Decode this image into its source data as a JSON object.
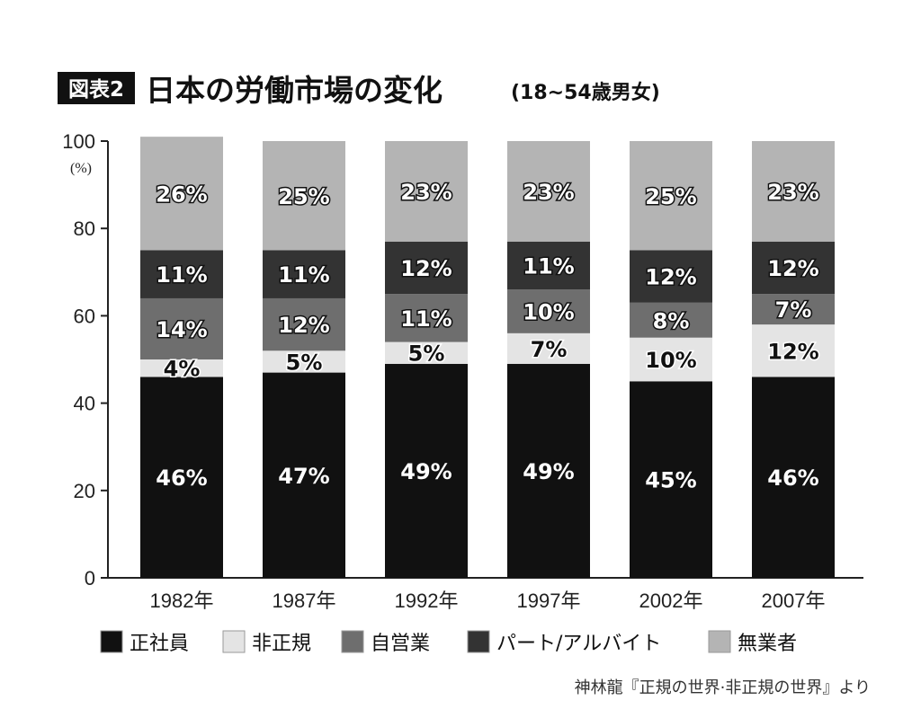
{
  "title": {
    "badge": "図表2",
    "main": "日本の労働市場の変化",
    "sub": "(18~54歳男女)"
  },
  "source": "神林龍『正規の世界·非正規の世界』より",
  "chart_data": {
    "type": "bar",
    "stacked": true,
    "ylabel": "(%)",
    "ylim": [
      0,
      100
    ],
    "yticks": [
      0,
      20,
      40,
      60,
      80,
      100
    ],
    "categories": [
      "1982年",
      "1987年",
      "1992年",
      "1997年",
      "2002年",
      "2007年"
    ],
    "legend_position": "bottom",
    "series": [
      {
        "name": "正社員",
        "color": "#111111",
        "label_color": "#ffffff",
        "values": [
          46,
          47,
          49,
          49,
          45,
          46
        ],
        "labels": [
          "46%",
          "47%",
          "49%",
          "49%",
          "45%",
          "46%"
        ]
      },
      {
        "name": "非正規",
        "color": "#e4e4e4",
        "label_color": "#111111",
        "values": [
          4,
          5,
          5,
          7,
          10,
          12
        ],
        "labels": [
          "4%",
          "5%",
          "5%",
          "7%",
          "10%",
          "12%"
        ]
      },
      {
        "name": "自営業",
        "color": "#6e6e6e",
        "label_color": "#ffffff",
        "values": [
          14,
          12,
          11,
          10,
          8,
          7
        ],
        "labels": [
          "14%",
          "12%",
          "11%",
          "10%",
          "8%",
          "7%"
        ]
      },
      {
        "name": "パート/アルバイト",
        "color": "#333333",
        "label_color": "#ffffff",
        "values": [
          11,
          11,
          12,
          11,
          12,
          12
        ],
        "labels": [
          "11%",
          "11%",
          "12%",
          "11%",
          "12%",
          "12%"
        ]
      },
      {
        "name": "無業者",
        "color": "#b4b4b4",
        "label_color": "#ffffff",
        "values": [
          26,
          25,
          23,
          23,
          25,
          23
        ],
        "labels": [
          "26%",
          "25%",
          "23%",
          "23%",
          "25%",
          "23%"
        ]
      }
    ]
  }
}
